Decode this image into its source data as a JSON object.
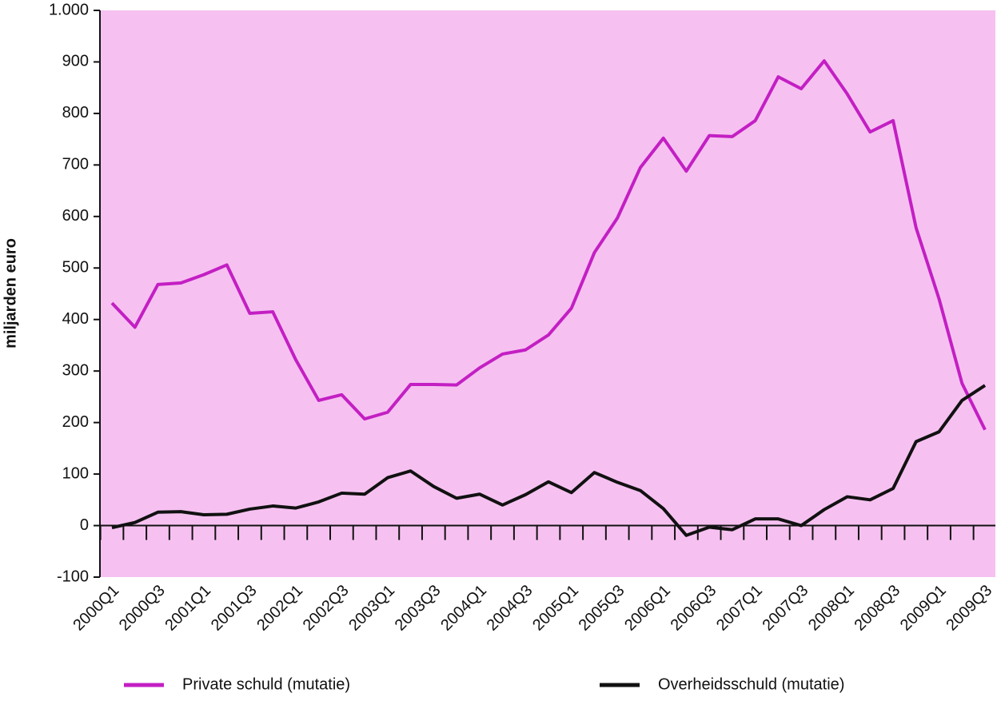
{
  "chart_data": {
    "type": "line",
    "y_label": "miljarden euro",
    "categories": [
      "2000Q1",
      null,
      "2000Q3",
      null,
      "2001Q1",
      null,
      "2001Q3",
      null,
      "2002Q1",
      null,
      "2002Q3",
      null,
      "2003Q1",
      null,
      "2003Q3",
      null,
      "2004Q1",
      null,
      "2004Q3",
      null,
      "2005Q1",
      null,
      "2005Q3",
      null,
      "2006Q1",
      null,
      "2006Q3",
      null,
      "2007Q1",
      null,
      "2007Q3",
      null,
      "2008Q1",
      null,
      "2008Q3",
      null,
      "2009Q1",
      null,
      "2009Q3"
    ],
    "series": [
      {
        "name": "Private schuld (mutatie)",
        "color": "#c31fc3",
        "values": [
          432,
          385,
          468,
          471,
          487,
          506,
          412,
          415,
          322,
          243,
          254,
          207,
          220,
          274,
          274,
          273,
          306,
          333,
          341,
          370,
          422,
          530,
          597,
          695,
          752,
          688,
          757,
          755,
          786,
          871,
          848,
          902,
          838,
          764,
          786,
          578,
          440,
          276,
          186
        ]
      },
      {
        "name": "Overheidsschuld (mutatie)",
        "color": "#111111",
        "values": [
          -4,
          6,
          26,
          27,
          21,
          22,
          32,
          38,
          34,
          46,
          63,
          61,
          93,
          106,
          76,
          53,
          61,
          40,
          60,
          85,
          64,
          103,
          84,
          68,
          33,
          -19,
          -3,
          -8,
          13,
          13,
          0,
          31,
          56,
          50,
          72,
          163,
          182,
          243,
          272
        ]
      }
    ],
    "ylim": [
      -100,
      1000
    ],
    "yticks": [
      -100,
      0,
      100,
      200,
      300,
      400,
      500,
      600,
      700,
      800,
      900,
      {
        "value": 1000,
        "label": "1.000"
      }
    ],
    "plot_background": "#f6c1f1",
    "legend": "bottom"
  }
}
